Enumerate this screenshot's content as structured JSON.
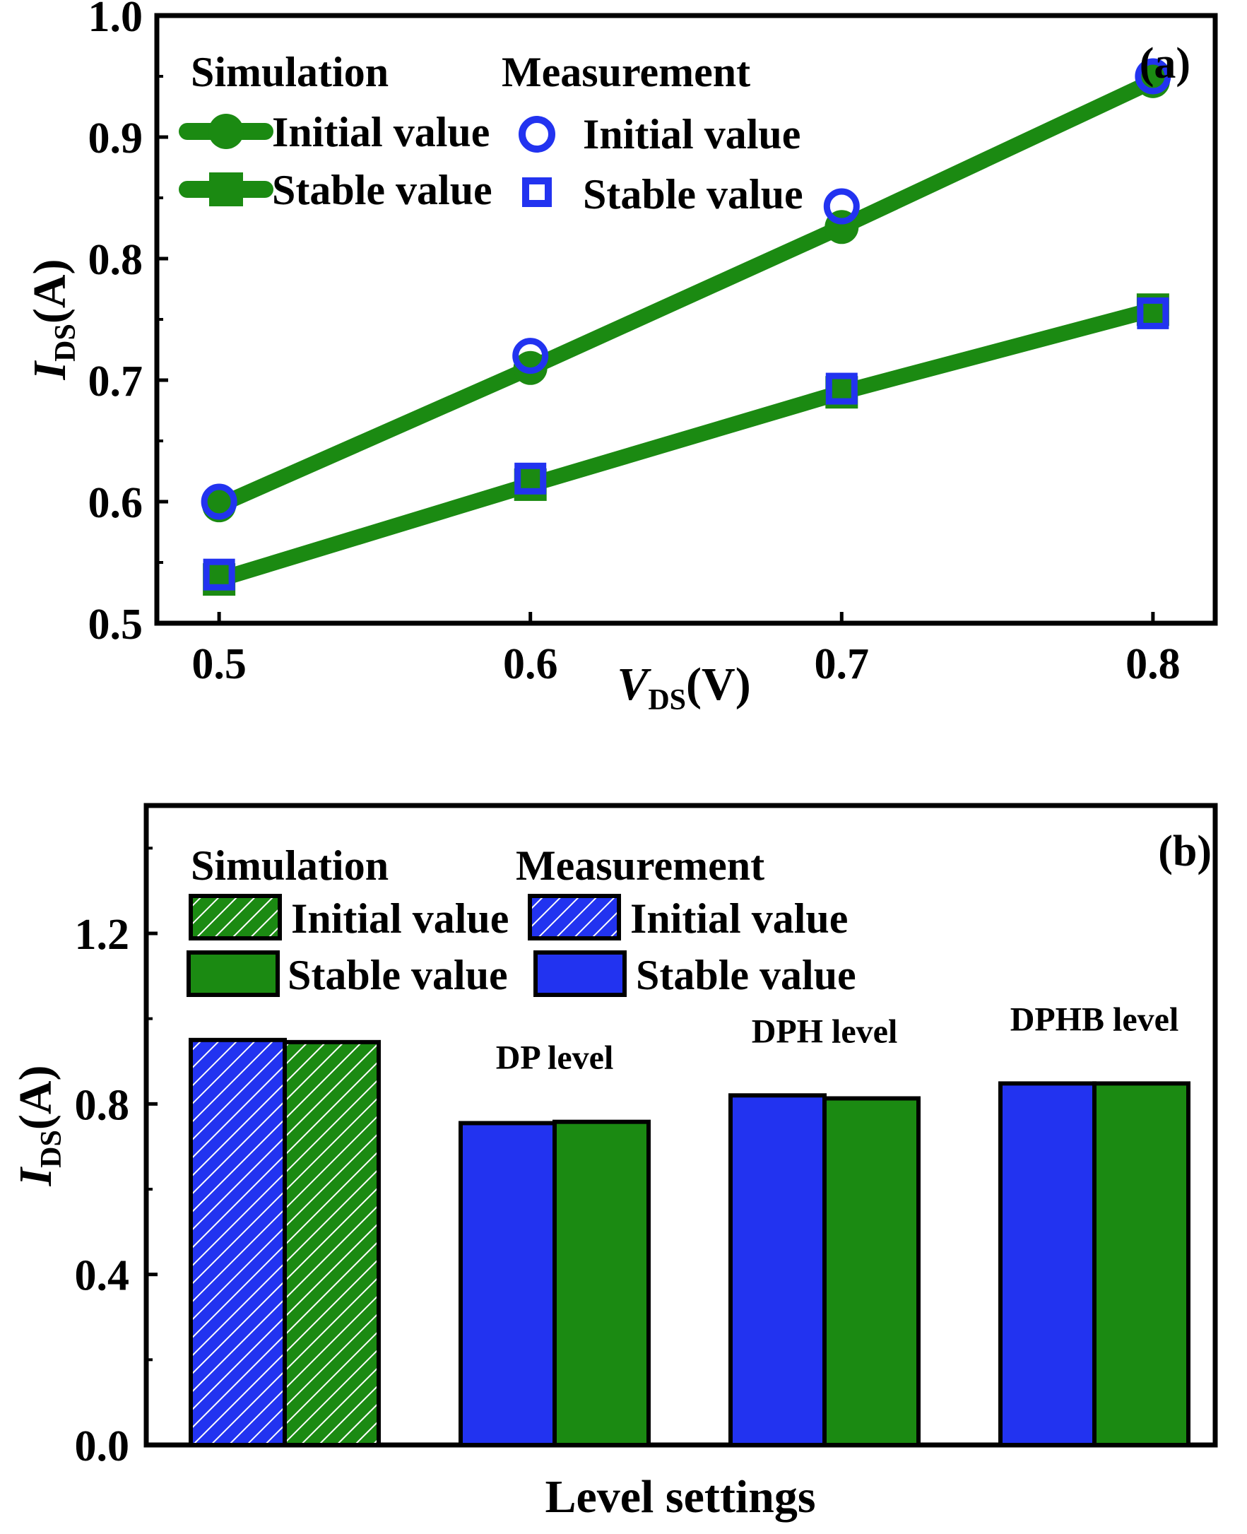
{
  "colors": {
    "sim": "#1b8a12",
    "meas": "#2233f0",
    "axis": "#000000",
    "background": "#ffffff"
  },
  "chart_data": [
    {
      "type": "line",
      "panel_label": "(a)",
      "xlabel_main": "V",
      "xlabel_sub": "DS",
      "xlabel_unit": "(V)",
      "ylabel_main": "I",
      "ylabel_sub": "DS",
      "ylabel_unit": "(A)",
      "xlim": [
        0.48,
        0.82
      ],
      "ylim": [
        0.5,
        1.0
      ],
      "xticks": [
        0.5,
        0.6,
        0.7,
        0.8
      ],
      "xtick_labels": [
        "0.5",
        "0.6",
        "0.7",
        "0.8"
      ],
      "yticks": [
        0.5,
        0.6,
        0.7,
        0.8,
        0.9,
        1.0
      ],
      "ytick_labels": [
        "0.5",
        "0.6",
        "0.7",
        "0.8",
        "0.9",
        "1.0"
      ],
      "x": [
        0.5,
        0.6,
        0.7,
        0.8
      ],
      "legend": {
        "sim_header": "Simulation",
        "meas_header": "Measurement",
        "initial_label": "Initial value",
        "stable_label": "Stable value",
        "placement": "top-left"
      },
      "series": [
        {
          "name": "Simulation Initial value",
          "group": "sim",
          "kind": "initial",
          "marker": "circle",
          "values": [
            0.597,
            0.71,
            0.826,
            0.946
          ]
        },
        {
          "name": "Simulation Stable value",
          "group": "sim",
          "kind": "stable",
          "marker": "square",
          "values": [
            0.536,
            0.614,
            0.69,
            0.758
          ]
        },
        {
          "name": "Measurement Initial value",
          "group": "meas",
          "kind": "initial",
          "marker": "circle-open",
          "values": [
            0.6,
            0.72,
            0.843,
            0.95
          ]
        },
        {
          "name": "Measurement Stable value",
          "group": "meas",
          "kind": "stable",
          "marker": "square-open",
          "values": [
            0.54,
            0.619,
            0.693,
            0.755
          ]
        }
      ]
    },
    {
      "type": "bar",
      "panel_label": "(b)",
      "xlabel": "Level settings",
      "ylabel_main": "I",
      "ylabel_sub": "DS",
      "ylabel_unit": "(A)",
      "ylim": [
        0.0,
        1.5
      ],
      "yticks": [
        0.0,
        0.4,
        0.8,
        1.2
      ],
      "ytick_labels": [
        "0.0",
        "0.4",
        "0.8",
        "1.2"
      ],
      "legend": {
        "sim_header": "Simulation",
        "meas_header": "Measurement",
        "sim_initial": "Initial value",
        "meas_initial": "Initial value",
        "sim_stable": "Stable value",
        "meas_stable": "Stable value",
        "placement": "top-left"
      },
      "groups": [
        {
          "label": "",
          "bars": [
            {
              "series": "Measurement Initial value",
              "color": "meas",
              "hatched": true,
              "value": 0.95
            },
            {
              "series": "Simulation Initial value",
              "color": "sim",
              "hatched": true,
              "value": 0.945
            }
          ]
        },
        {
          "label": "DP level",
          "bars": [
            {
              "series": "Measurement Stable value",
              "color": "meas",
              "hatched": false,
              "value": 0.755
            },
            {
              "series": "Simulation Stable value",
              "color": "sim",
              "hatched": false,
              "value": 0.758
            }
          ]
        },
        {
          "label": "DPH level",
          "bars": [
            {
              "series": "Measurement Stable value",
              "color": "meas",
              "hatched": false,
              "value": 0.82
            },
            {
              "series": "Simulation Stable value",
              "color": "sim",
              "hatched": false,
              "value": 0.813
            }
          ]
        },
        {
          "label": "DPHB level",
          "bars": [
            {
              "series": "Measurement Stable value",
              "color": "meas",
              "hatched": false,
              "value": 0.848
            },
            {
              "series": "Simulation Stable value",
              "color": "sim",
              "hatched": false,
              "value": 0.848
            }
          ]
        }
      ]
    }
  ]
}
